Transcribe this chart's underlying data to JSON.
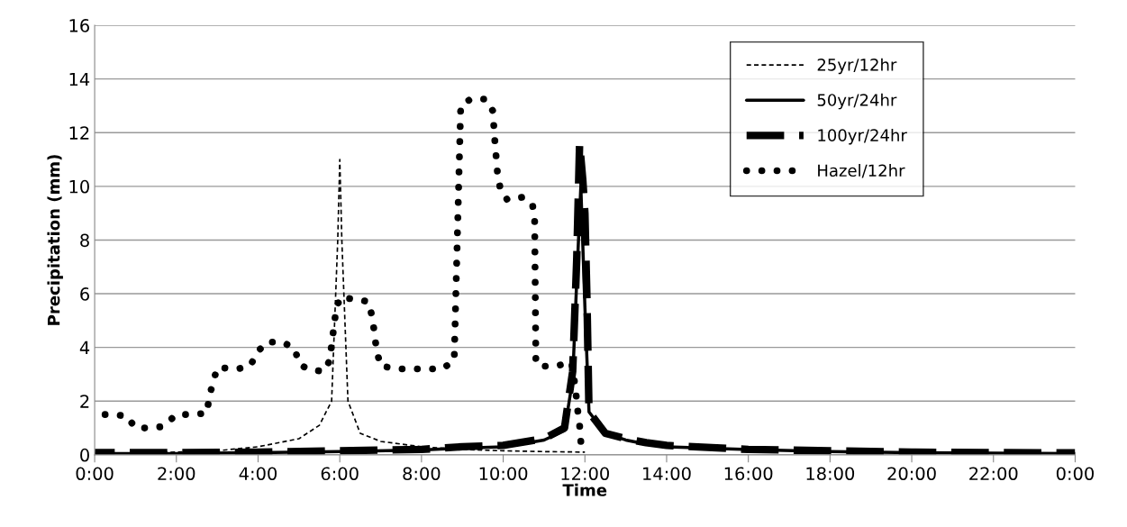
{
  "chart_data": {
    "type": "line",
    "xlabel": "Time",
    "ylabel": "Precipitation (mm)",
    "xlim": [
      0,
      24
    ],
    "ylim": [
      0,
      16
    ],
    "xticks": [
      {
        "value": 0,
        "label": "0:00"
      },
      {
        "value": 2,
        "label": "2:00"
      },
      {
        "value": 4,
        "label": "4:00"
      },
      {
        "value": 6,
        "label": "6:00"
      },
      {
        "value": 8,
        "label": "8:00"
      },
      {
        "value": 10,
        "label": "10:00"
      },
      {
        "value": 12,
        "label": "12:00"
      },
      {
        "value": 14,
        "label": "14:00"
      },
      {
        "value": 16,
        "label": "16:00"
      },
      {
        "value": 18,
        "label": "18:00"
      },
      {
        "value": 20,
        "label": "20:00"
      },
      {
        "value": 22,
        "label": "22:00"
      },
      {
        "value": 24,
        "label": "0:00"
      }
    ],
    "yticks": [
      0,
      2,
      4,
      6,
      8,
      10,
      12,
      14,
      16
    ],
    "grid": "y",
    "legend": "top right",
    "marker": "none",
    "series": [
      {
        "name": "25yr/12hr",
        "color": "#000000",
        "line_style": "dashed",
        "x": [
          0,
          2,
          3,
          4,
          5,
          5.5,
          5.8,
          5.95,
          6.0,
          6.05,
          6.2,
          6.5,
          7,
          8,
          9,
          10,
          11,
          12
        ],
        "values": [
          0.05,
          0.1,
          0.15,
          0.3,
          0.6,
          1.1,
          2,
          8,
          11,
          8,
          2,
          0.8,
          0.5,
          0.3,
          0.2,
          0.15,
          0.12,
          0.1
        ]
      },
      {
        "name": "50yr/24hr",
        "color": "#000000",
        "line_style": "solid",
        "x": [
          0,
          2,
          4,
          6,
          8,
          9,
          10,
          11,
          11.5,
          11.7,
          11.8,
          11.9,
          12.0,
          12.1,
          12.5,
          13,
          13.5,
          14,
          16,
          18,
          20,
          22,
          24
        ],
        "values": [
          0.05,
          0.05,
          0.08,
          0.12,
          0.18,
          0.25,
          0.3,
          0.55,
          0.9,
          2.8,
          6.5,
          10,
          5.5,
          1.6,
          0.8,
          0.55,
          0.4,
          0.3,
          0.2,
          0.12,
          0.08,
          0.06,
          0.05
        ]
      },
      {
        "name": "100yr/24hr",
        "color": "#000000",
        "line_style": "dashed",
        "x": [
          0,
          2,
          4,
          6,
          8,
          9,
          10,
          11,
          11.5,
          11.7,
          11.8,
          11.87,
          11.95,
          12.0,
          12.05,
          12.1,
          12.5,
          13,
          13.5,
          14,
          16,
          18,
          20,
          22,
          24
        ],
        "values": [
          0.08,
          0.08,
          0.1,
          0.15,
          0.2,
          0.3,
          0.35,
          0.6,
          1.0,
          3.1,
          7.3,
          11.6,
          10.2,
          9,
          5.8,
          1.6,
          0.8,
          0.6,
          0.45,
          0.35,
          0.2,
          0.15,
          0.1,
          0.08,
          0.07
        ]
      },
      {
        "name": "Hazel/12hr",
        "color": "#000000",
        "line_style": "dotted",
        "x": [
          0,
          0.4,
          0.78,
          1.0,
          1.33,
          1.67,
          2.0,
          2.33,
          2.75,
          2.8,
          2.9,
          3.0,
          3.5,
          3.8,
          4.0,
          4.2,
          4.6,
          4.9,
          5.0,
          5.2,
          5.6,
          5.75,
          5.8,
          5.85,
          5.9,
          6.0,
          6.4,
          6.7,
          6.8,
          6.85,
          6.9,
          7.0,
          7.5,
          8.0,
          8.5,
          8.8,
          8.96,
          9.2,
          9.57,
          9.75,
          9.77,
          9.8,
          9.86,
          9.93,
          10.1,
          10.48,
          10.72,
          10.77,
          10.8,
          10.92,
          11.27,
          11.67,
          11.73,
          11.78,
          11.82,
          11.87,
          11.9
        ],
        "values": [
          1.5,
          1.5,
          1.45,
          1.0,
          1.0,
          1.05,
          1.5,
          1.5,
          1.55,
          2.15,
          2.7,
          3.25,
          3.2,
          3.3,
          3.85,
          4.2,
          4.2,
          3.95,
          3.4,
          3.2,
          3.1,
          3.5,
          4.1,
          4.7,
          5.3,
          5.85,
          5.8,
          5.7,
          5.1,
          4.5,
          3.9,
          3.3,
          3.2,
          3.2,
          3.2,
          3.5,
          13.0,
          13.25,
          13.25,
          12.8,
          12.25,
          11.6,
          10.5,
          9.9,
          9.5,
          9.6,
          9.3,
          8.7,
          3.4,
          3.3,
          3.3,
          3.45,
          2.9,
          2.3,
          1.7,
          1.1,
          0.5
        ]
      }
    ]
  }
}
